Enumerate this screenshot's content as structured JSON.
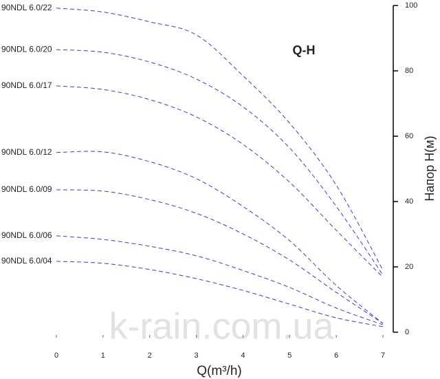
{
  "chart_data": {
    "type": "line",
    "title": "Q-H",
    "x_label": "Q(m³/h)",
    "y_label": "Напор Н(м)",
    "watermark": "k-rain.com.ua",
    "x": [
      0,
      1,
      2,
      3,
      4,
      5,
      6,
      7
    ],
    "xlim": [
      0,
      7
    ],
    "xticks": [
      0,
      1,
      2,
      3,
      4,
      5,
      6,
      7
    ],
    "ylim": [
      0,
      100
    ],
    "yticks": [
      0,
      20,
      40,
      60,
      80,
      100
    ],
    "y_axis_side": "right",
    "line_style": "dashed",
    "series": [
      {
        "name": "90NDL 6.0/22",
        "color": "#3a3ad8",
        "values": [
          99.2,
          98,
          95,
          91,
          78.5,
          64,
          45,
          19
        ]
      },
      {
        "name": "90NDL 6.0/20",
        "color": "#3a3ad8",
        "values": [
          86.5,
          85.7,
          82.7,
          77.5,
          69,
          56.4,
          38.5,
          17.5
        ]
      },
      {
        "name": "90NDL 6.0/17",
        "color": "#3a3ad8",
        "values": [
          75.4,
          74.3,
          71.2,
          65.9,
          57.5,
          45.9,
          31.2,
          16.8
        ]
      },
      {
        "name": "90NDL 6.0/12",
        "color": "#3a3ad8",
        "values": [
          55,
          55.2,
          52.2,
          47,
          38.5,
          28,
          14.3,
          2.7
        ]
      },
      {
        "name": "90NDL 6.0/09",
        "color": "#3a3ad8",
        "values": [
          43.6,
          43.2,
          40.6,
          36.4,
          30.1,
          22.1,
          12.2,
          2.7
        ]
      },
      {
        "name": "90NDL 6.0/06",
        "color": "#3a3ad8",
        "values": [
          29.5,
          28.4,
          26.3,
          23.4,
          18.9,
          13.7,
          7.4,
          2.3
        ]
      },
      {
        "name": "90NDL 6.0/04",
        "color": "#3a3ad8",
        "values": [
          21.7,
          21.1,
          19.2,
          16.4,
          12.8,
          8.6,
          4.4,
          1.7
        ]
      }
    ]
  }
}
